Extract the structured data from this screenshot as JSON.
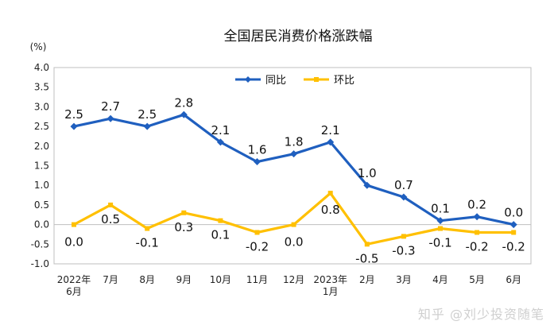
{
  "chart_data": {
    "type": "line",
    "title": "全国居民消费价格涨跌幅",
    "unit_label": "(%)",
    "ylim": [
      -1.0,
      4.0
    ],
    "yticks": [
      "4.0",
      "3.5",
      "3.0",
      "2.5",
      "2.0",
      "1.5",
      "1.0",
      "0.5",
      "0.0",
      "-0.5",
      "-1.0"
    ],
    "categories": [
      [
        "2022年",
        "6月"
      ],
      [
        "7月"
      ],
      [
        "8月"
      ],
      [
        "9月"
      ],
      [
        "10月"
      ],
      [
        "11月"
      ],
      [
        "12月"
      ],
      [
        "2023年",
        "1月"
      ],
      [
        "2月"
      ],
      [
        "3月"
      ],
      [
        "4月"
      ],
      [
        "5月"
      ],
      [
        "6月"
      ]
    ],
    "grid": false,
    "legend_position": "top-center",
    "series": [
      {
        "name": "同比",
        "color": "#1f5fbf",
        "values": [
          2.5,
          2.7,
          2.5,
          2.8,
          2.1,
          1.6,
          1.8,
          2.1,
          1.0,
          0.7,
          0.1,
          0.2,
          0.0
        ],
        "labels": [
          "2.5",
          "2.7",
          "2.5",
          "2.8",
          "2.1",
          "1.6",
          "1.8",
          "2.1",
          "1.0",
          "0.7",
          "0.1",
          "0.2",
          "0.0"
        ]
      },
      {
        "name": "环比",
        "color": "#ffc000",
        "values": [
          0.0,
          0.5,
          -0.1,
          0.3,
          0.1,
          -0.2,
          0.0,
          0.8,
          -0.5,
          -0.3,
          -0.1,
          -0.2,
          -0.2
        ],
        "labels": [
          "0.0",
          "0.5",
          "-0.1",
          "0.3",
          "0.1",
          "-0.2",
          "0.0",
          "0.8",
          "-0.5",
          "-0.3",
          "-0.1",
          "-0.2",
          "-0.2"
        ]
      }
    ]
  },
  "watermark": "知乎 @刘少投资随笔"
}
